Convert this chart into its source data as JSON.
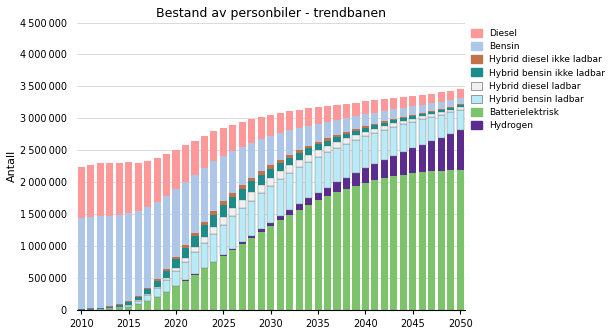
{
  "title": "Bestand av personbiler - trendbanen",
  "ylabel": "Antall",
  "years": [
    2010,
    2011,
    2012,
    2013,
    2014,
    2015,
    2016,
    2017,
    2018,
    2019,
    2020,
    2021,
    2022,
    2023,
    2024,
    2025,
    2026,
    2027,
    2028,
    2029,
    2030,
    2031,
    2032,
    2033,
    2034,
    2035,
    2036,
    2037,
    2038,
    2039,
    2040,
    2041,
    2042,
    2043,
    2044,
    2045,
    2046,
    2047,
    2048,
    2049,
    2050
  ],
  "series": {
    "Diesel": [
      800000,
      820000,
      840000,
      830000,
      820000,
      800000,
      760000,
      720000,
      680000,
      650000,
      610000,
      570000,
      530000,
      500000,
      470000,
      440000,
      410000,
      390000,
      370000,
      350000,
      330000,
      315000,
      300000,
      285000,
      270000,
      255000,
      245000,
      235000,
      220000,
      210000,
      200000,
      190000,
      180000,
      170000,
      165000,
      158000,
      152000,
      148000,
      143000,
      138000,
      133000
    ],
    "Bensin": [
      1420000,
      1430000,
      1430000,
      1420000,
      1400000,
      1370000,
      1320000,
      1270000,
      1210000,
      1140000,
      1065000,
      990000,
      915000,
      845000,
      775000,
      710000,
      650000,
      595000,
      545000,
      500000,
      458000,
      418000,
      382000,
      348000,
      318000,
      290000,
      265000,
      243000,
      223000,
      205000,
      190000,
      175000,
      162000,
      151000,
      141000,
      133000,
      126000,
      120000,
      115000,
      111000,
      107000
    ],
    "Hybrid diesel ikke ladbar": [
      5000,
      6000,
      7000,
      8000,
      10000,
      13000,
      16000,
      20000,
      25000,
      30000,
      36000,
      42000,
      48000,
      54000,
      58000,
      60000,
      60000,
      59000,
      57000,
      54000,
      50000,
      47000,
      44000,
      41000,
      38000,
      35000,
      33000,
      31000,
      29000,
      27000,
      25000,
      23000,
      22000,
      21000,
      20000,
      19000,
      18000,
      17000,
      16000,
      15500,
      15000
    ],
    "Hybrid bensin ikke ladbar": [
      10000,
      13000,
      17000,
      22000,
      30000,
      42000,
      58000,
      75000,
      95000,
      118000,
      140000,
      160000,
      175000,
      185000,
      190000,
      190000,
      185000,
      178000,
      168000,
      157000,
      145000,
      134000,
      123000,
      113000,
      103000,
      94000,
      86000,
      79000,
      72000,
      66000,
      61000,
      56000,
      52000,
      48000,
      44000,
      41000,
      38000,
      35000,
      33000,
      31000,
      29000
    ],
    "Hybrid diesel ladbar": [
      0,
      0,
      0,
      1000,
      2000,
      4000,
      8000,
      14000,
      22000,
      33000,
      46000,
      61000,
      76000,
      91000,
      105000,
      115000,
      123000,
      128000,
      130000,
      130000,
      128000,
      124000,
      119000,
      113000,
      107000,
      100000,
      94000,
      88000,
      82000,
      76000,
      71000,
      66000,
      61000,
      57000,
      53000,
      49000,
      46000,
      43000,
      40000,
      37000,
      35000
    ],
    "Hybrid bensin ladbar": [
      0,
      2000,
      5000,
      10000,
      18000,
      32000,
      55000,
      88000,
      130000,
      180000,
      235000,
      290000,
      345000,
      395000,
      440000,
      480000,
      512000,
      537000,
      555000,
      568000,
      576000,
      580000,
      580000,
      577000,
      572000,
      565000,
      555000,
      543000,
      530000,
      516000,
      501000,
      485000,
      468000,
      451000,
      433000,
      415000,
      397000,
      378000,
      360000,
      342000,
      325000
    ],
    "Batterielektrisk": [
      2000,
      4000,
      8000,
      15000,
      28000,
      50000,
      90000,
      145000,
      210000,
      285000,
      370000,
      460000,
      555000,
      650000,
      745000,
      840000,
      935000,
      1030000,
      1125000,
      1220000,
      1315000,
      1405000,
      1490000,
      1570000,
      1645000,
      1715000,
      1780000,
      1840000,
      1895000,
      1945000,
      1990000,
      2030000,
      2065000,
      2095000,
      2120000,
      2140000,
      2157000,
      2170000,
      2180000,
      2188000,
      2193000
    ],
    "Hydrogen": [
      0,
      0,
      0,
      0,
      0,
      100,
      300,
      700,
      1500,
      2000,
      3000,
      4500,
      6500,
      9000,
      12000,
      16000,
      21000,
      27000,
      34000,
      42000,
      51000,
      62000,
      74000,
      87000,
      102000,
      119000,
      137000,
      157000,
      179000,
      202000,
      228000,
      256000,
      286000,
      318000,
      352000,
      390000,
      430000,
      473000,
      519000,
      568000,
      620000
    ]
  },
  "colors": {
    "Diesel": "#FF9999",
    "Bensin": "#AEC6E8",
    "Hybrid diesel ikke ladbar": "#C0724A",
    "Hybrid bensin ikke ladbar": "#1E8B8B",
    "Hybrid diesel ladbar": "#F0F0F0",
    "Hybrid bensin ladbar": "#B8EAF8",
    "Batterielektrisk": "#7DC36B",
    "Hydrogen": "#5B2C8D"
  },
  "ylim": [
    0,
    4500000
  ],
  "yticks": [
    0,
    500000,
    1000000,
    1500000,
    2000000,
    2500000,
    3000000,
    3500000,
    4000000,
    4500000
  ],
  "background_color": "#FFFFFF",
  "grid_color": "#CCCCCC"
}
